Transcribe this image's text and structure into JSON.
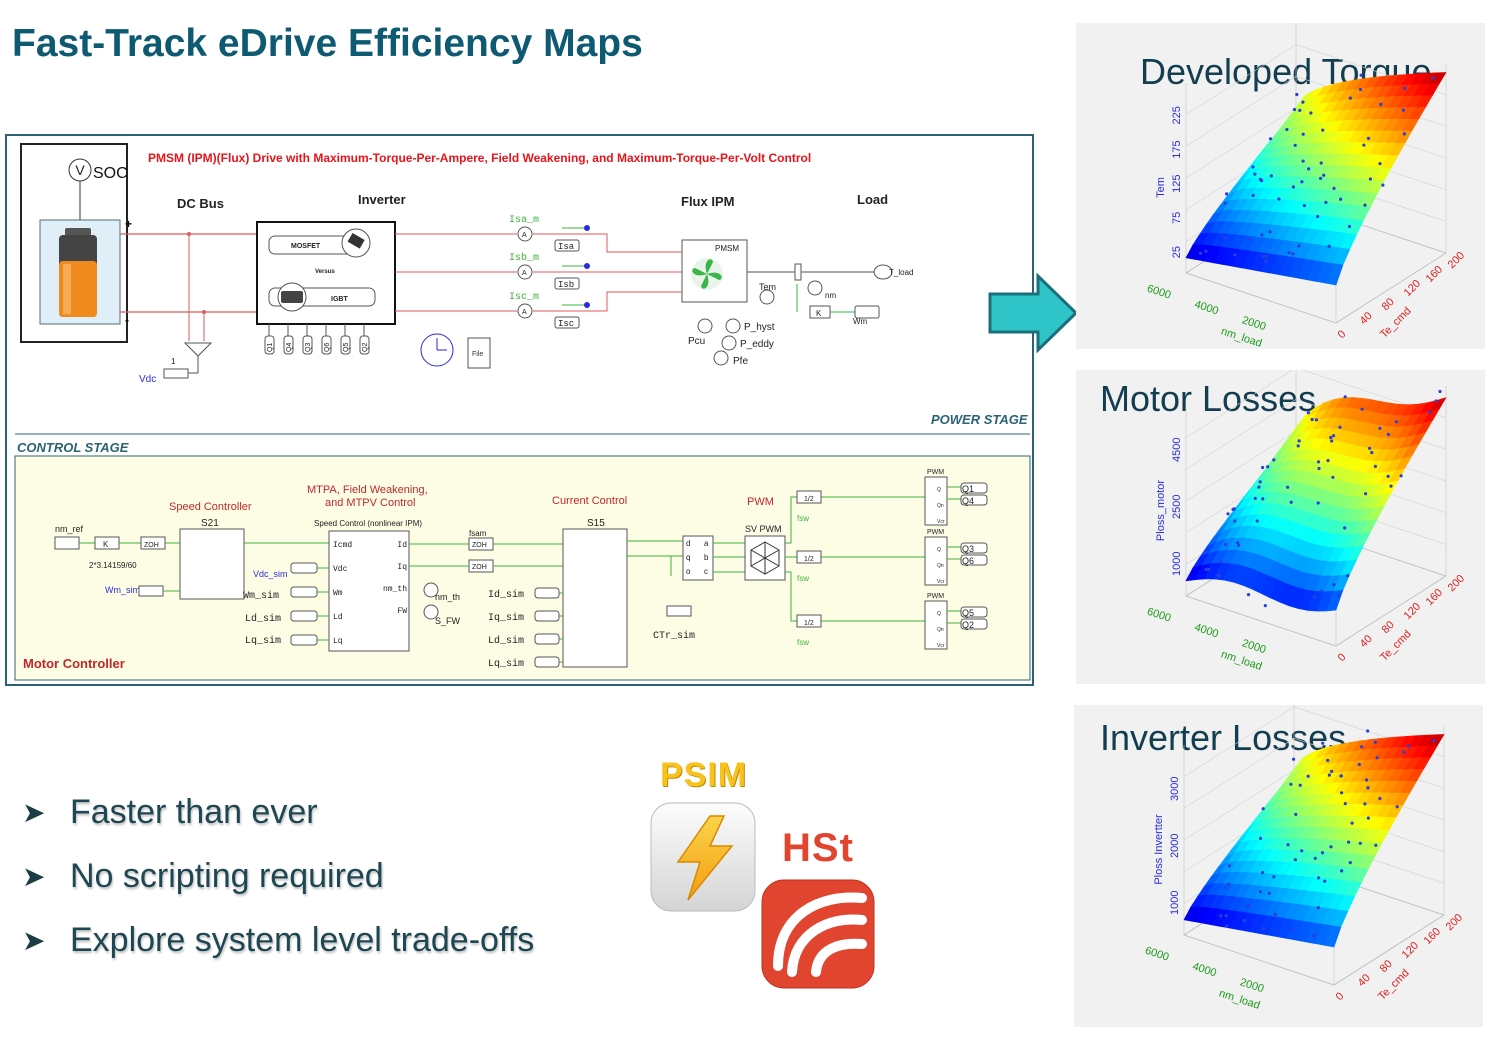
{
  "title": "Fast-Track eDrive Efficiency Maps",
  "schematic": {
    "heading": "PMSM (IPM)(Flux) Drive with Maximum-Torque-Per-Ampere, Field Weakening, and Maximum-Torque-Per-Volt Control",
    "v_label": "V",
    "soc_label": "SOC",
    "dc_bus": "DC Bus",
    "inverter": "Inverter",
    "flux_ipm": "Flux IPM",
    "load": "Load",
    "mosfet": "MOSFET",
    "versus": "Versus",
    "igbt": "IGBT",
    "plus": "+",
    "minus": "-",
    "vdc": "Vdc",
    "one": "1",
    "isa_m": "Isa_m",
    "isb_m": "Isb_m",
    "isc_m": "Isc_m",
    "isa": "Isa",
    "isb": "Isb",
    "isc": "Isc",
    "ammeter": "A",
    "pmsm": "PMSM",
    "pcu": "Pcu",
    "p_hyst": "P_hyst",
    "p_eddy": "P_eddy",
    "pfe": "Pfe",
    "tem": "Tem",
    "nm": "nm",
    "t_load": "T_load",
    "k": "K",
    "wm": "Wm",
    "file": "File",
    "switches": [
      "Q1",
      "Q4",
      "Q3",
      "Q6",
      "Q5",
      "Q2"
    ],
    "power_stage": "POWER STAGE",
    "control_stage": "CONTROL STAGE",
    "motor_controller": "Motor Controller",
    "speed_controller": "Speed Controller",
    "s21": "S21",
    "nm_ref": "nm_ref",
    "zoh": "ZOH",
    "gain_const": "2*3.14159/60",
    "wm_sim": "Wm_sim",
    "vdc_sim": "Vdc_sim",
    "wm_sim2": "Wm_sim",
    "ld_sim": "Ld_sim",
    "lq_sim": "Lq_sim",
    "mtpa_line1": "MTPA, Field Weakening,",
    "mtpa_line2": "and MTPV Control",
    "speed_control_nl": "Speed Control (nonlinear IPM)",
    "mtpa_inputs": [
      "Icmd",
      "Vdc",
      "Wm",
      "Ld",
      "Lq"
    ],
    "mtpa_outputs": [
      "Id",
      "Iq",
      "nm_th",
      "FW"
    ],
    "nm_th": "nm_th",
    "s_fw": "S_FW",
    "fsam": "fsam",
    "current_control": "Current Control",
    "s15": "S15",
    "cc_inputs": [
      "Id_sim",
      "Iq_sim",
      "Ld_sim",
      "Lq_sim"
    ],
    "dq": [
      "d",
      "q",
      "o"
    ],
    "abc": [
      "a",
      "b",
      "c"
    ],
    "ctr_sim": "CTr_sim",
    "pwm": "PWM",
    "sv_pwm": "SV PWM",
    "fsw": "fsw",
    "half": "1/2",
    "pwm_small": "PWM",
    "pwm_pins": [
      "Q",
      "Qn",
      "Vcr"
    ]
  },
  "bullets": [
    "Faster than ever",
    "No scripting required",
    "Explore system level trade-offs"
  ],
  "bullet_icon": "arrow-right-icon",
  "logos": {
    "psim": "PSIM",
    "hst": "HSt"
  },
  "colors": {
    "title": "#0e5a73",
    "arrow": "#2ec4c8",
    "heading_red": "#e8141c",
    "wire_red": "#e05a5a",
    "wire_green": "#3cb43c",
    "control_bg": "#fdfde6"
  },
  "plots": [
    {
      "title": "Developed Torque",
      "zlabel": "Tem",
      "zticks": [
        "25",
        "75",
        "125",
        "175",
        "225"
      ],
      "xlabel": "nm_load",
      "xticks": [
        "6000",
        "4000",
        "2000"
      ],
      "ylabel": "Te_cmd",
      "yticks": [
        "0",
        "40",
        "80",
        "120",
        "160",
        "200"
      ]
    },
    {
      "title": "Motor Losses",
      "zlabel": "Ploss_motor",
      "zticks": [
        "1000",
        "2500",
        "4500"
      ],
      "xlabel": "nm_load",
      "xticks": [
        "6000",
        "4000",
        "2000"
      ],
      "ylabel": "Te_cmd",
      "yticks": [
        "0",
        "40",
        "80",
        "120",
        "160",
        "200"
      ]
    },
    {
      "title": "Inverter Losses",
      "zlabel": "Ploss Invertter",
      "zticks": [
        "1000",
        "2000",
        "3000"
      ],
      "xlabel": "nm_load",
      "xticks": [
        "6000",
        "4000",
        "2000"
      ],
      "ylabel": "Te_cmd",
      "yticks": [
        "0",
        "40",
        "80",
        "120",
        "160",
        "200"
      ]
    }
  ]
}
